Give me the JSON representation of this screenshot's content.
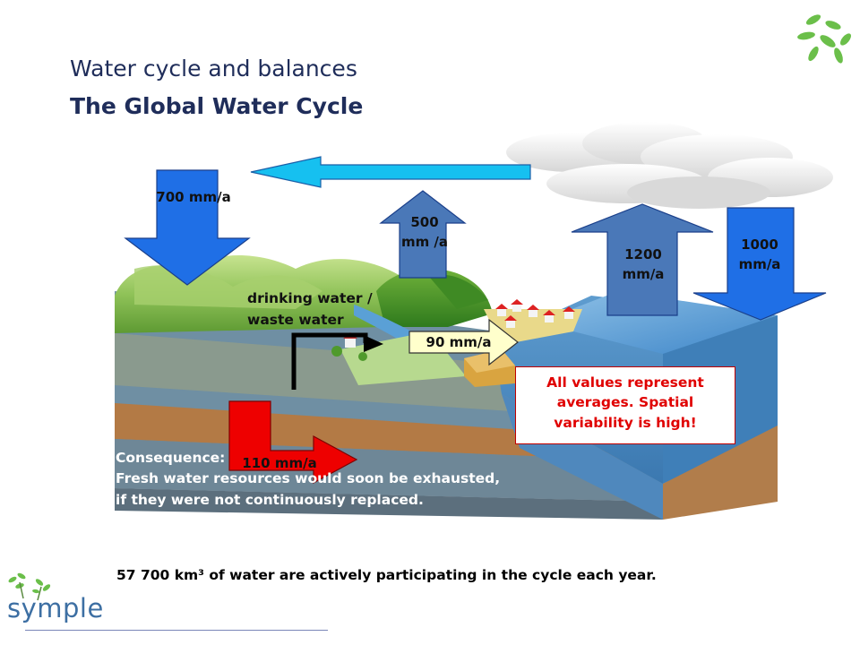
{
  "header": {
    "title": "Water cycle and balances",
    "subtitle": "The Global Water Cycle"
  },
  "flows": {
    "precipitation_land": "700 mm/a",
    "evaporation_land": "500 mm /a",
    "evaporation_ocean": "1200 mm/a",
    "precipitation_ocean": "1000 mm/a",
    "surface_runoff": "90 mm/a",
    "groundwater_flow": "110 mm/a"
  },
  "labels": {
    "drinking_line1": "drinking water /",
    "drinking_line2": "waste water"
  },
  "note": {
    "text": "All values represent averages. Spatial variability is high!"
  },
  "consequence": {
    "line1": "Consequence:",
    "line2": "Fresh water resources would soon be exhausted,",
    "line3": "if they were not continuously replaced."
  },
  "footer": {
    "text": "57 700 km³ of water are actively participating  in the cycle each year."
  },
  "logo": {
    "text": "symple"
  },
  "colors": {
    "title": "#1f2d5a",
    "precip_blue": "#1f6fe6",
    "evap_steel": "#4a78b8",
    "transport_cyan": "#16c0f0",
    "groundwater_red": "#ee0000",
    "runoff_yellow": "#ffffcc",
    "note_red": "#e00000",
    "ocean": "#6ea7d8",
    "land_green": "#7cb342",
    "soil_brown": "#9a6a3a"
  }
}
